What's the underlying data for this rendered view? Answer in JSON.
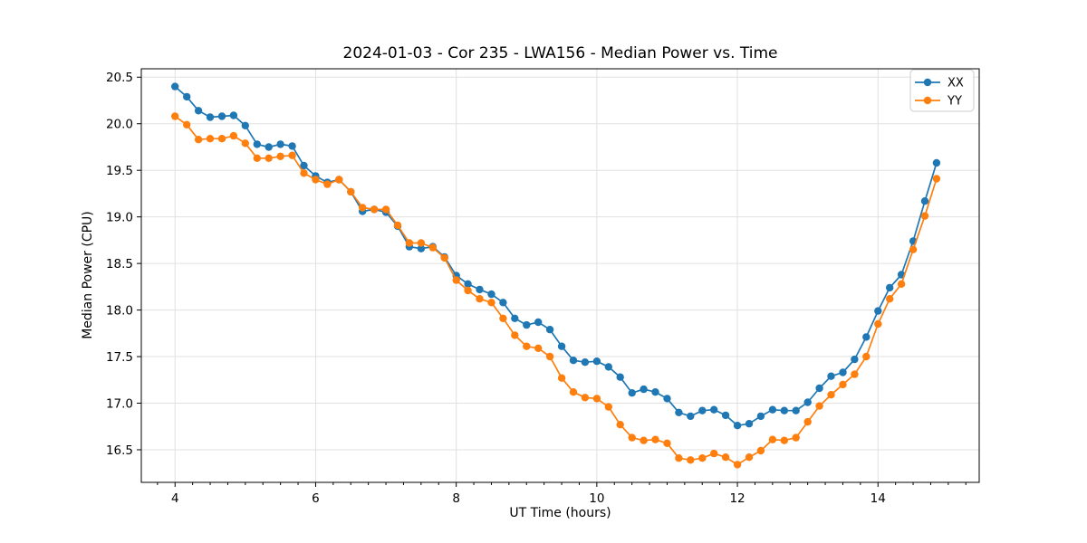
{
  "chart_data": {
    "type": "line",
    "title": "2024-01-03 - Cor 235 - LWA156 - Median Power vs. Time",
    "xlabel": "UT Time (hours)",
    "ylabel": "Median Power (CPU)",
    "xlim": [
      3.52,
      15.44
    ],
    "ylim": [
      16.15,
      20.59
    ],
    "x_ticks": [
      4,
      6,
      8,
      10,
      12,
      14
    ],
    "x_minor_tick_interval": 0.25,
    "y_ticks": [
      16.5,
      17.0,
      17.5,
      18.0,
      18.5,
      19.0,
      19.5,
      20.0,
      20.5
    ],
    "grid": true,
    "legend_position": "upper-right",
    "x_start": 4.0,
    "x_step": 0.1666667,
    "series": [
      {
        "name": "XX",
        "color": "#1f77b4",
        "values": [
          20.4,
          20.29,
          20.14,
          20.07,
          20.08,
          20.09,
          19.98,
          19.78,
          19.75,
          19.78,
          19.76,
          19.55,
          19.44,
          19.37,
          19.4,
          19.27,
          19.06,
          19.08,
          19.05,
          18.9,
          18.68,
          18.66,
          18.68,
          18.57,
          18.37,
          18.28,
          18.22,
          18.17,
          18.08,
          17.91,
          17.84,
          17.87,
          17.79,
          17.61,
          17.46,
          17.44,
          17.45,
          17.39,
          17.28,
          17.11,
          17.15,
          17.12,
          17.05,
          16.9,
          16.86,
          16.92,
          16.93,
          16.87,
          16.76,
          16.78,
          16.86,
          16.93,
          16.92,
          16.92,
          17.01,
          17.16,
          17.29,
          17.33,
          17.47,
          17.71,
          17.99,
          18.24,
          18.38,
          18.74,
          19.17,
          19.58
        ]
      },
      {
        "name": "YY",
        "color": "#ff7f0e",
        "values": [
          20.08,
          19.99,
          19.83,
          19.84,
          19.84,
          19.87,
          19.79,
          19.63,
          19.63,
          19.65,
          19.66,
          19.47,
          19.4,
          19.35,
          19.4,
          19.27,
          19.1,
          19.08,
          19.08,
          18.91,
          18.72,
          18.72,
          18.67,
          18.56,
          18.32,
          18.21,
          18.12,
          18.08,
          17.91,
          17.73,
          17.61,
          17.59,
          17.5,
          17.27,
          17.12,
          17.06,
          17.05,
          16.96,
          16.77,
          16.63,
          16.6,
          16.61,
          16.57,
          16.41,
          16.39,
          16.41,
          16.46,
          16.42,
          16.34,
          16.42,
          16.49,
          16.61,
          16.6,
          16.63,
          16.8,
          16.97,
          17.09,
          17.2,
          17.31,
          17.5,
          17.85,
          18.12,
          18.28,
          18.65,
          19.01,
          19.41
        ]
      }
    ],
    "colors": {
      "grid": "#e0e0e0",
      "spine": "#000000",
      "tick": "#000000",
      "text": "#000000",
      "legend_border": "#cccccc"
    }
  }
}
